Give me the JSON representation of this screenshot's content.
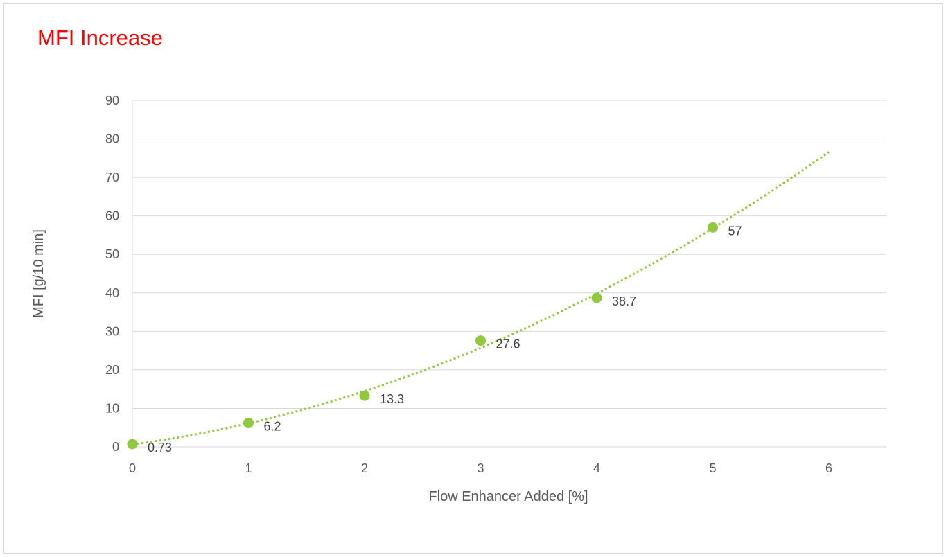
{
  "chart_data": {
    "type": "scatter",
    "title": "MFI Increase",
    "xlabel": "Flow Enhancer Added [%]",
    "ylabel": "MFI [g/10 min]",
    "xlim": [
      0,
      6
    ],
    "ylim": [
      0,
      90
    ],
    "x_ticks": [
      "0",
      "1",
      "2",
      "3",
      "4",
      "5",
      "6"
    ],
    "y_ticks": [
      "0",
      "10",
      "20",
      "30",
      "40",
      "50",
      "60",
      "70",
      "80",
      "90"
    ],
    "grid": "horizontal",
    "series": [
      {
        "x": [
          0,
          1,
          2,
          3,
          4,
          5
        ],
        "y": [
          0.73,
          6.2,
          13.3,
          27.6,
          38.7,
          57
        ],
        "labels": [
          "0.73",
          "6.2",
          "13.3",
          "27.6",
          "38.7",
          "57"
        ],
        "color": "#92c83e",
        "trendline": {
          "type": "polynomial",
          "x_range": [
            0,
            6
          ],
          "style": "dotted",
          "color": "#92c83e"
        }
      }
    ],
    "colors": {
      "title": "#ff0000",
      "marker": "#92c83e",
      "grid": "#d9d9d9",
      "text": "#595959"
    }
  }
}
